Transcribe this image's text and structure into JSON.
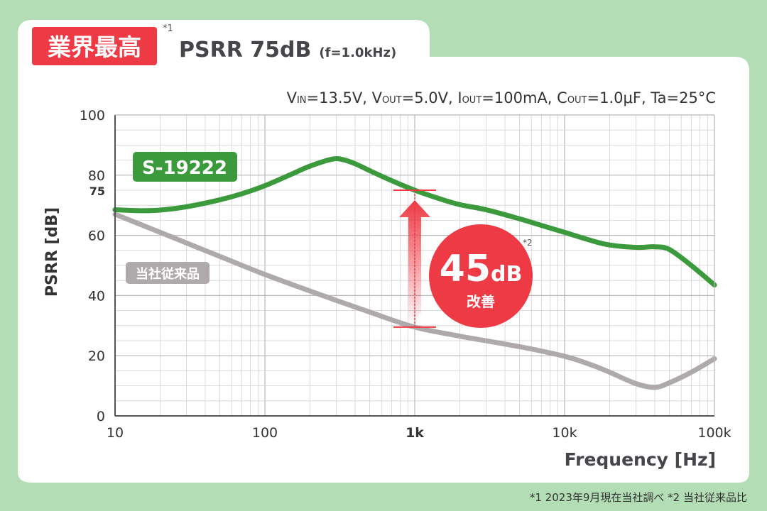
{
  "header": {
    "badge": "業界最高",
    "footnote_mark": "*1",
    "headline": "PSRR 75dB",
    "headline_sub": "(f=1.0kHz)"
  },
  "conditions": {
    "v_in": "V",
    "v_in_sub": "IN",
    "v_in_val": "=13.5V, ",
    "v_out": "V",
    "v_out_sub": "OUT",
    "v_out_val": "=5.0V, ",
    "i_out": "I",
    "i_out_sub": "OUT",
    "i_out_val": "=100mA, ",
    "c_out": "C",
    "c_out_sub": "OUT",
    "c_out_val": "=1.0μF, Ta=25°C"
  },
  "callout": {
    "value": "45",
    "unit": "dB",
    "label": "改善",
    "footnote_mark": "*2"
  },
  "footer": {
    "notes": "*1 2023年9月現在当社調べ  *2 当社従来品比"
  },
  "colors": {
    "background": "#b3ddb5",
    "green_series": "#3a9a3c",
    "gray_series": "#aeaaab",
    "accent_red": "#ee3a44"
  },
  "chart_data": {
    "type": "line",
    "xlabel": "Frequency [Hz]",
    "ylabel": "PSRR [dB]",
    "x_scale": "log",
    "xlim": [
      10,
      100000
    ],
    "ylim": [
      0,
      100
    ],
    "grid": true,
    "x_ticks": [
      {
        "value": 10,
        "label": "10",
        "bold": false
      },
      {
        "value": 100,
        "label": "100",
        "bold": false
      },
      {
        "value": 1000,
        "label": "1k",
        "bold": true
      },
      {
        "value": 10000,
        "label": "10k",
        "bold": false
      },
      {
        "value": 100000,
        "label": "100k",
        "bold": false
      }
    ],
    "y_ticks": [
      {
        "value": 0,
        "label": "0",
        "bold": false
      },
      {
        "value": 20,
        "label": "20",
        "bold": false
      },
      {
        "value": 40,
        "label": "40",
        "bold": false
      },
      {
        "value": 60,
        "label": "60",
        "bold": false
      },
      {
        "value": 75,
        "label": "75",
        "bold": true
      },
      {
        "value": 80,
        "label": "80",
        "bold": false
      },
      {
        "value": 100,
        "label": "100",
        "bold": false
      }
    ],
    "series": [
      {
        "name": "S-19222",
        "color": "#3a9a3c",
        "x": [
          10,
          15,
          20,
          30,
          50,
          70,
          100,
          150,
          200,
          280,
          330,
          400,
          500,
          700,
          1000,
          1500,
          2000,
          3000,
          5000,
          7000,
          10000,
          15000,
          20000,
          30000,
          40000,
          50000,
          70000,
          100000
        ],
        "y": [
          68.5,
          68.2,
          68.4,
          69.5,
          71.8,
          73.8,
          76.5,
          80.3,
          83,
          85.3,
          85.2,
          83.8,
          81.5,
          78.2,
          75,
          72,
          70.2,
          68.5,
          65.5,
          63.3,
          61,
          58.3,
          56.8,
          56,
          56.2,
          55.3,
          50,
          43.5
        ]
      },
      {
        "name": "当社従来品",
        "color": "#aeaaab",
        "x": [
          10,
          20,
          50,
          100,
          200,
          500,
          1000,
          2000,
          5000,
          10000,
          15000,
          20000,
          30000,
          40000,
          50000,
          70000,
          100000
        ],
        "y": [
          67,
          61,
          53,
          47,
          41.5,
          34.5,
          29.5,
          26.5,
          23,
          19.8,
          17,
          14.5,
          10.7,
          9.5,
          11,
          14.5,
          19
        ]
      }
    ],
    "annotation": {
      "frequency": 1000,
      "from": 29.5,
      "to": 75
    }
  }
}
